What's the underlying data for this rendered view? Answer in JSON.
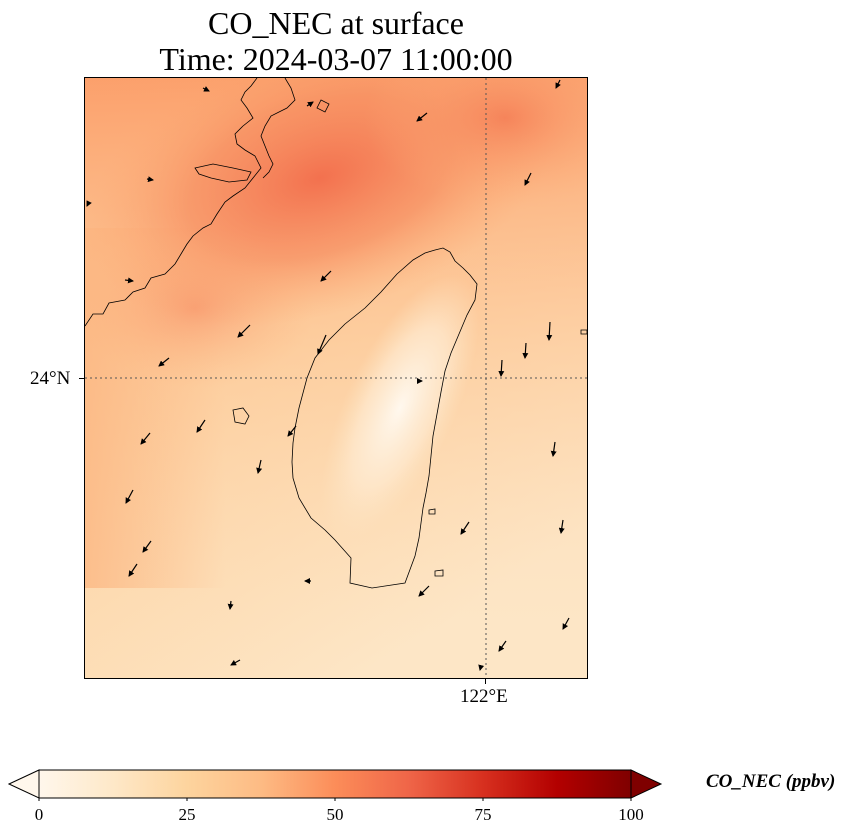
{
  "title_line1": "CO_NEC at surface",
  "title_line2": "Time: 2024-03-07 11:00:00",
  "map": {
    "lat_label": "24°N",
    "lon_label": "122°E",
    "gridline_color": "#555555",
    "coastline_color": "#000000"
  },
  "colorbar": {
    "label": "CO_NEC (ppbv)",
    "colormap": "OrRd",
    "ticks": [
      "0",
      "25",
      "50",
      "75",
      "100"
    ],
    "range": [
      0,
      100
    ],
    "extend": "both",
    "colors": [
      "#fff7ec",
      "#fee8c8",
      "#fdd49e",
      "#fdbb84",
      "#fc8d59",
      "#ef6548",
      "#d7301f",
      "#b30000",
      "#7f0000"
    ]
  }
}
